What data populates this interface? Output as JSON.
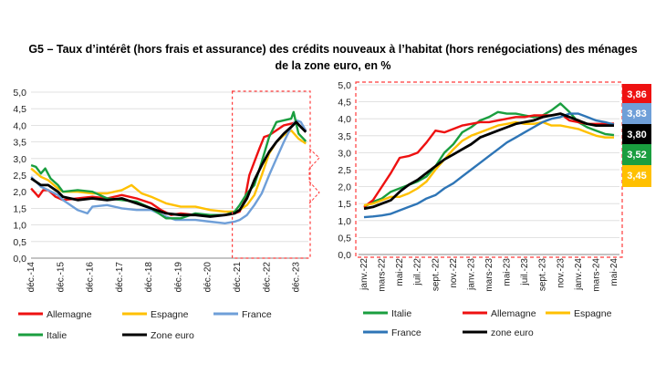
{
  "title_line1": "G5 – Taux d’intérêt (hors frais et assurance) des crédits nouveaux à l’habitat (hors renégociations) des ménages",
  "title_line2": "de la zone euro, en %",
  "chart_data": [
    {
      "type": "line",
      "ylim": [
        0,
        5
      ],
      "yticks": [
        "0,0",
        "0,5",
        "1,0",
        "1,5",
        "2,0",
        "2,5",
        "3,0",
        "3,5",
        "4,0",
        "4,5",
        "5,0"
      ],
      "xticks": [
        "déc.-14",
        "déc.-15",
        "déc.-16",
        "déc.-17",
        "déc.-18",
        "déc.-19",
        "déc.-20",
        "déc.-21",
        "déc.-22",
        "déc.-23"
      ],
      "xlim": [
        2014.917,
        2024.333
      ],
      "legend": [
        "Allemagne",
        "Espagne",
        "France",
        "Italie",
        "Zone euro"
      ],
      "series": [
        {
          "name": "Allemagne",
          "color": "#ee1111",
          "x": [
            2014.92,
            2015.17,
            2015.33,
            2015.5,
            2015.75,
            2016.0,
            2016.5,
            2017.0,
            2017.5,
            2018.0,
            2018.5,
            2019.0,
            2019.33,
            2019.67,
            2020.0,
            2020.5,
            2021.0,
            2021.5,
            2021.83,
            2022.0,
            2022.17,
            2022.33,
            2022.5,
            2022.67,
            2022.83,
            2023.0,
            2023.25,
            2023.5,
            2023.75,
            2023.92,
            2024.08,
            2024.25
          ],
          "y": [
            2.1,
            1.85,
            2.05,
            2.05,
            1.85,
            1.75,
            1.8,
            1.85,
            1.8,
            1.9,
            1.8,
            1.65,
            1.45,
            1.3,
            1.35,
            1.3,
            1.3,
            1.3,
            1.35,
            1.4,
            1.75,
            2.5,
            2.9,
            3.3,
            3.65,
            3.7,
            3.85,
            4.0,
            4.05,
            4.1,
            3.95,
            3.86
          ]
        },
        {
          "name": "Espagne",
          "color": "#ffc000",
          "x": [
            2014.92,
            2015.25,
            2015.5,
            2015.83,
            2016.0,
            2016.5,
            2017.0,
            2017.5,
            2018.0,
            2018.33,
            2018.67,
            2019.0,
            2019.5,
            2020.0,
            2020.5,
            2021.0,
            2021.5,
            2021.83,
            2022.0,
            2022.25,
            2022.5,
            2022.75,
            2023.0,
            2023.25,
            2023.5,
            2023.75,
            2024.0,
            2024.25
          ],
          "y": [
            2.7,
            2.45,
            2.35,
            2.1,
            2.0,
            2.0,
            1.95,
            1.95,
            2.05,
            2.2,
            1.95,
            1.85,
            1.65,
            1.55,
            1.55,
            1.45,
            1.4,
            1.4,
            1.45,
            1.6,
            1.9,
            2.5,
            3.15,
            3.5,
            3.7,
            3.85,
            3.6,
            3.45
          ]
        },
        {
          "name": "France",
          "color": "#6f9fd8",
          "x": [
            2014.92,
            2015.25,
            2015.5,
            2015.83,
            2016.0,
            2016.5,
            2016.83,
            2017.0,
            2017.5,
            2018.0,
            2018.5,
            2019.0,
            2019.5,
            2019.83,
            2020.0,
            2020.5,
            2021.0,
            2021.5,
            2021.83,
            2022.0,
            2022.25,
            2022.5,
            2022.75,
            2023.0,
            2023.25,
            2023.5,
            2023.75,
            2023.92,
            2024.08,
            2024.25
          ],
          "y": [
            2.45,
            2.15,
            2.05,
            1.9,
            1.75,
            1.45,
            1.35,
            1.55,
            1.6,
            1.5,
            1.45,
            1.45,
            1.25,
            1.15,
            1.15,
            1.15,
            1.1,
            1.05,
            1.1,
            1.15,
            1.3,
            1.6,
            1.95,
            2.5,
            3.0,
            3.5,
            3.95,
            4.15,
            4.1,
            3.83
          ]
        },
        {
          "name": "Italie",
          "color": "#1a9e3f",
          "x": [
            2014.92,
            2015.08,
            2015.25,
            2015.4,
            2015.58,
            2015.83,
            2016.0,
            2016.5,
            2017.0,
            2017.5,
            2018.0,
            2018.5,
            2019.0,
            2019.5,
            2020.0,
            2020.5,
            2021.0,
            2021.5,
            2021.83,
            2022.0,
            2022.25,
            2022.5,
            2022.75,
            2023.0,
            2023.25,
            2023.5,
            2023.75,
            2023.83,
            2024.0,
            2024.25
          ],
          "y": [
            2.8,
            2.75,
            2.55,
            2.7,
            2.4,
            2.2,
            2.0,
            2.05,
            2.0,
            1.8,
            1.75,
            1.7,
            1.5,
            1.2,
            1.2,
            1.35,
            1.3,
            1.3,
            1.4,
            1.6,
            1.95,
            2.2,
            2.9,
            3.65,
            4.1,
            4.15,
            4.2,
            4.4,
            3.75,
            3.52
          ]
        },
        {
          "name": "Zone euro",
          "color": "#000000",
          "x": [
            2014.92,
            2015.25,
            2015.5,
            2015.83,
            2016.0,
            2016.5,
            2017.0,
            2017.5,
            2018.0,
            2018.5,
            2019.0,
            2019.5,
            2020.0,
            2020.5,
            2021.0,
            2021.5,
            2021.83,
            2022.0,
            2022.25,
            2022.5,
            2022.75,
            2023.0,
            2023.25,
            2023.5,
            2023.75,
            2023.92,
            2024.08,
            2024.25
          ],
          "y": [
            2.4,
            2.2,
            2.2,
            2.0,
            1.85,
            1.75,
            1.8,
            1.75,
            1.8,
            1.65,
            1.5,
            1.35,
            1.3,
            1.3,
            1.25,
            1.3,
            1.35,
            1.45,
            1.8,
            2.35,
            2.8,
            3.2,
            3.5,
            3.75,
            3.95,
            4.1,
            3.95,
            3.8
          ]
        }
      ]
    },
    {
      "type": "line",
      "ylim": [
        0,
        5
      ],
      "yticks": [
        "0,0",
        "0,5",
        "1,0",
        "1,5",
        "2,0",
        "2,5",
        "3,0",
        "3,5",
        "4,0",
        "4,5",
        "5,0"
      ],
      "xticks": [
        "janv.-22",
        "mars-22",
        "mai-22",
        "juil.-22",
        "sept.-22",
        "nov.-22",
        "janv.-23",
        "mars-23",
        "mai-23",
        "juil.-23",
        "sept.-23",
        "nov.-23",
        "janv.-24",
        "mars-24",
        "mai-24"
      ],
      "legend": [
        "Italie",
        "Allemagne",
        "Espagne",
        "France",
        "zone euro"
      ],
      "last_values": [
        {
          "label": "3,86",
          "color": "#ee1111"
        },
        {
          "label": "3,83",
          "color": "#6f9fd8"
        },
        {
          "label": "3,80",
          "color": "#000000"
        },
        {
          "label": "3,52",
          "color": "#1a9e3f"
        },
        {
          "label": "3,45",
          "color": "#ffc000"
        }
      ],
      "series": [
        {
          "name": "Italie",
          "color": "#1a9e3f",
          "y": [
            1.4,
            1.55,
            1.65,
            1.85,
            1.95,
            2.05,
            2.15,
            2.3,
            2.6,
            3.0,
            3.25,
            3.6,
            3.75,
            3.95,
            4.05,
            4.2,
            4.15,
            4.15,
            4.1,
            4.05,
            4.1,
            4.25,
            4.45,
            4.2,
            3.9,
            3.75,
            3.65,
            3.55,
            3.52
          ]
        },
        {
          "name": "Allemagne",
          "color": "#ee1111",
          "y": [
            1.4,
            1.6,
            2.0,
            2.4,
            2.85,
            2.9,
            3.0,
            3.3,
            3.65,
            3.6,
            3.7,
            3.8,
            3.85,
            3.9,
            3.9,
            3.95,
            4.0,
            4.05,
            4.05,
            4.1,
            4.1,
            4.1,
            4.15,
            3.95,
            3.9,
            3.85,
            3.85,
            3.85,
            3.86
          ]
        },
        {
          "name": "Espagne",
          "color": "#ffc000",
          "y": [
            1.45,
            1.5,
            1.6,
            1.7,
            1.7,
            1.8,
            1.95,
            2.15,
            2.5,
            2.8,
            3.1,
            3.35,
            3.5,
            3.6,
            3.7,
            3.8,
            3.85,
            3.9,
            3.85,
            3.85,
            3.9,
            3.8,
            3.8,
            3.75,
            3.7,
            3.6,
            3.5,
            3.45,
            3.45
          ]
        },
        {
          "name": "France",
          "color": "#2e75b6",
          "y": [
            1.1,
            1.12,
            1.15,
            1.2,
            1.3,
            1.4,
            1.5,
            1.65,
            1.75,
            1.95,
            2.1,
            2.3,
            2.5,
            2.7,
            2.9,
            3.1,
            3.3,
            3.45,
            3.6,
            3.75,
            3.9,
            4.0,
            4.05,
            4.15,
            4.15,
            4.05,
            3.95,
            3.9,
            3.83
          ]
        },
        {
          "name": "zone euro",
          "color": "#000000",
          "y": [
            1.35,
            1.4,
            1.5,
            1.6,
            1.85,
            2.05,
            2.2,
            2.4,
            2.6,
            2.8,
            2.95,
            3.1,
            3.25,
            3.45,
            3.55,
            3.65,
            3.75,
            3.85,
            3.9,
            3.95,
            4.05,
            4.1,
            4.15,
            4.05,
            3.95,
            3.85,
            3.8,
            3.8,
            3.8
          ]
        }
      ]
    }
  ]
}
